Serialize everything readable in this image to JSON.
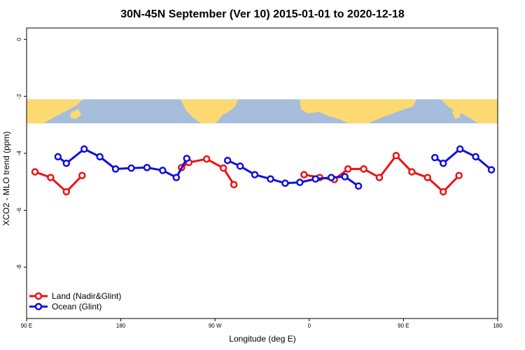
{
  "chart_data": {
    "type": "line",
    "title": "30N-45N September (Ver 10)   2015-01-01 to 2020-12-18",
    "xlabel": "Longitude (deg E)",
    "ylabel": "XCO2 - MLO trend (ppm)",
    "xlim": [
      90,
      540
    ],
    "ylim": [
      -9.8,
      0.4
    ],
    "x_ticks": [
      {
        "value": 90,
        "label": "90 E"
      },
      {
        "value": 180,
        "label": "180"
      },
      {
        "value": 270,
        "label": "90 W"
      },
      {
        "value": 360,
        "label": "0"
      },
      {
        "value": 450,
        "label": "90 E"
      },
      {
        "value": 540,
        "label": "180"
      }
    ],
    "y_ticks": [
      {
        "value": 0,
        "label": "0"
      },
      {
        "value": -2,
        "label": "-2"
      },
      {
        "value": -4,
        "label": "-4"
      },
      {
        "value": -6,
        "label": "-6"
      },
      {
        "value": -8,
        "label": "-8"
      }
    ],
    "map_band": {
      "y_top": -2.1,
      "y_bottom": -2.95,
      "ocean_color": "#a7bddc",
      "land_color": "#fdd972"
    },
    "legend": {
      "position": "bottom-left"
    },
    "series": [
      {
        "name": "Land (Nadir&Glint)",
        "color": "#ee1111",
        "segments": [
          [
            [
              98,
              -4.65
            ],
            [
              113,
              -4.85
            ],
            [
              128,
              -5.35
            ],
            [
              143,
              -4.78
            ]
          ],
          [
            [
              238,
              -4.5
            ],
            [
              245,
              -4.32
            ],
            [
              262,
              -4.2
            ],
            [
              278,
              -4.52
            ],
            [
              288,
              -5.1
            ]
          ],
          [
            [
              355,
              -4.75
            ],
            [
              370,
              -4.85
            ],
            [
              384,
              -4.92
            ],
            [
              397,
              -4.55
            ],
            [
              412,
              -4.55
            ],
            [
              427,
              -4.85
            ],
            [
              443,
              -4.08
            ],
            [
              458,
              -4.65
            ],
            [
              473,
              -4.85
            ],
            [
              488,
              -5.35
            ],
            [
              503,
              -4.78
            ]
          ]
        ]
      },
      {
        "name": "Ocean (Glint)",
        "color": "#0f0fdd",
        "segments": [
          [
            [
              120,
              -4.12
            ],
            [
              128,
              -4.35
            ],
            [
              145,
              -3.85
            ],
            [
              160,
              -4.12
            ],
            [
              175,
              -4.55
            ],
            [
              190,
              -4.52
            ],
            [
              205,
              -4.5
            ],
            [
              220,
              -4.6
            ],
            [
              233,
              -4.85
            ],
            [
              243,
              -4.18
            ]
          ],
          [
            [
              282,
              -4.25
            ],
            [
              294,
              -4.45
            ],
            [
              308,
              -4.75
            ],
            [
              323,
              -4.9
            ],
            [
              337,
              -5.05
            ],
            [
              351,
              -5.02
            ],
            [
              366,
              -4.9
            ],
            [
              381,
              -4.85
            ],
            [
              394,
              -4.82
            ],
            [
              407,
              -5.15
            ]
          ],
          [
            [
              480,
              -4.15
            ],
            [
              488,
              -4.35
            ],
            [
              504,
              -3.85
            ],
            [
              519,
              -4.12
            ],
            [
              534,
              -4.58
            ]
          ]
        ]
      }
    ]
  }
}
